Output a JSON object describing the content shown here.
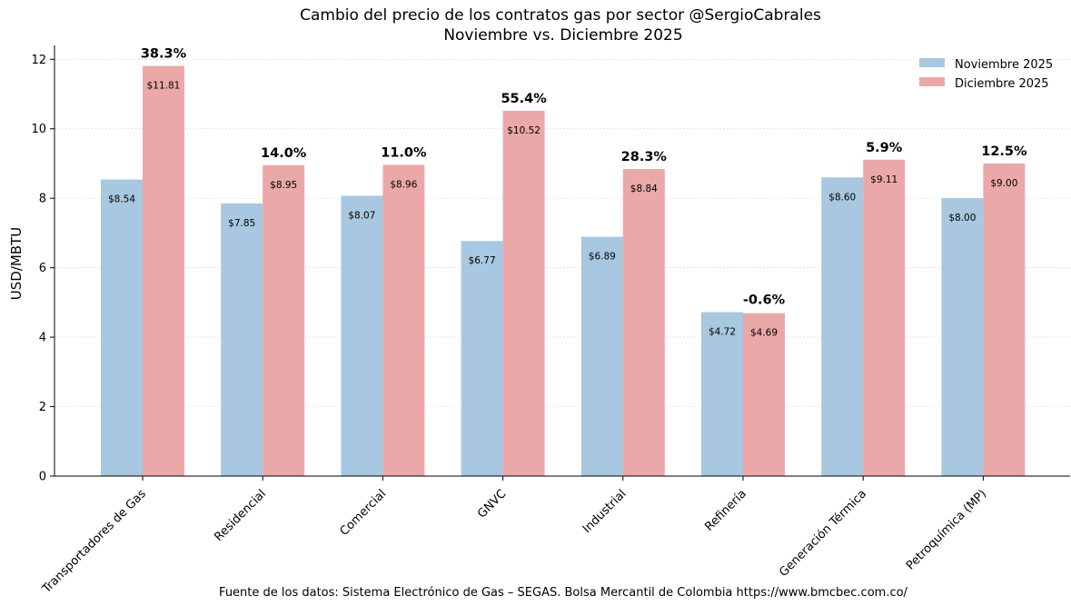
{
  "chart_data": {
    "type": "bar",
    "title": "Cambio del precio de los contratos gas por sector @SergioCabrales",
    "subtitle": "Noviembre vs. Diciembre 2025",
    "xlabel": "",
    "ylabel": "USD/MBTU",
    "ylim": [
      0,
      12.4
    ],
    "yticks": [
      "0",
      "2",
      "4",
      "6",
      "8",
      "10",
      "12"
    ],
    "grid": "horizontal dotted",
    "legend_position": "top-right",
    "categories": [
      "Transportadores de Gas",
      "Residencial",
      "Comercial",
      "GNVC",
      "Industrial",
      "Refinería",
      "Generación Térmica",
      "Petroquímica (MP)"
    ],
    "series": [
      {
        "name": "Noviembre 2025",
        "color": "#a7c8e0",
        "values": [
          8.54,
          7.85,
          8.07,
          6.77,
          6.89,
          4.72,
          8.6,
          8.0
        ],
        "labels": [
          "$8.54",
          "$7.85",
          "$8.07",
          "$6.77",
          "$6.89",
          "$4.72",
          "$8.60",
          "$8.00"
        ]
      },
      {
        "name": "Diciembre 2025",
        "color": "#eba8a8",
        "values": [
          11.81,
          8.95,
          8.96,
          10.52,
          8.84,
          4.69,
          9.11,
          9.0
        ],
        "labels": [
          "$11.81",
          "$8.95",
          "$8.96",
          "$10.52",
          "$8.84",
          "$4.69",
          "$9.11",
          "$9.00"
        ]
      }
    ],
    "change_labels": [
      "38.3%",
      "14.0%",
      "11.0%",
      "55.4%",
      "28.3%",
      "-0.6%",
      "5.9%",
      "12.5%"
    ],
    "source": "Fuente de los datos: Sistema Electrónico de Gas – SEGAS. Bolsa Mercantil de Colombia https://www.bmcbec.com.co/"
  }
}
